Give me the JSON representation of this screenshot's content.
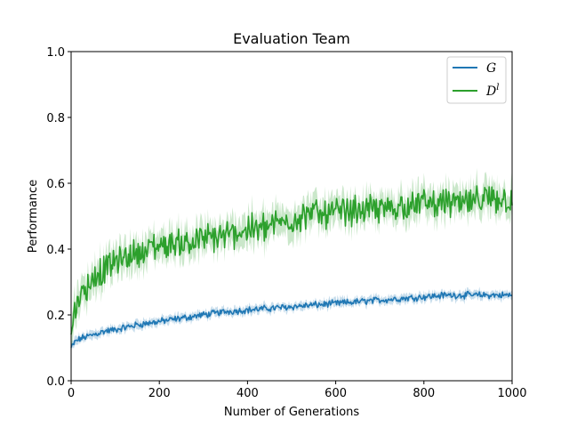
{
  "chart_data": {
    "type": "line",
    "title": "Evaluation Team",
    "xlabel": "Number of Generations",
    "ylabel": "Performance",
    "xlim": [
      0,
      1000
    ],
    "ylim": [
      0,
      1.0
    ],
    "xticks": [
      0,
      200,
      400,
      600,
      800,
      1000
    ],
    "yticks": [
      0.0,
      0.2,
      0.4,
      0.6,
      0.8,
      1.0
    ],
    "xtick_labels": [
      "0",
      "200",
      "400",
      "600",
      "800",
      "1000"
    ],
    "ytick_labels": [
      "0.0",
      "0.2",
      "0.4",
      "0.6",
      "0.8",
      "1.0"
    ],
    "grid": false,
    "legend_position": "top-right",
    "series": [
      {
        "name": "G",
        "color": "#1f77b4",
        "band_color": "#1f77b4",
        "x": [
          0,
          10,
          25,
          50,
          75,
          100,
          150,
          200,
          250,
          300,
          350,
          400,
          450,
          500,
          550,
          600,
          650,
          700,
          750,
          800,
          850,
          900,
          950,
          1000
        ],
        "y": [
          0.1,
          0.12,
          0.13,
          0.14,
          0.15,
          0.155,
          0.17,
          0.18,
          0.19,
          0.2,
          0.21,
          0.215,
          0.22,
          0.225,
          0.23,
          0.235,
          0.24,
          0.245,
          0.25,
          0.255,
          0.26,
          0.26,
          0.26,
          0.26
        ]
      },
      {
        "name": "D^l",
        "color": "#2ca02c",
        "band_color": "#2ca02c",
        "x": [
          0,
          5,
          10,
          25,
          50,
          75,
          100,
          150,
          200,
          250,
          300,
          350,
          400,
          450,
          500,
          550,
          600,
          650,
          700,
          750,
          800,
          850,
          900,
          950,
          1000
        ],
        "y": [
          0.12,
          0.2,
          0.23,
          0.27,
          0.31,
          0.34,
          0.36,
          0.39,
          0.41,
          0.42,
          0.43,
          0.44,
          0.46,
          0.47,
          0.49,
          0.51,
          0.51,
          0.52,
          0.52,
          0.53,
          0.54,
          0.54,
          0.54,
          0.55,
          0.55
        ]
      }
    ]
  },
  "legend": {
    "g_label": "G",
    "d_label_base": "D",
    "d_label_sup": "l"
  }
}
